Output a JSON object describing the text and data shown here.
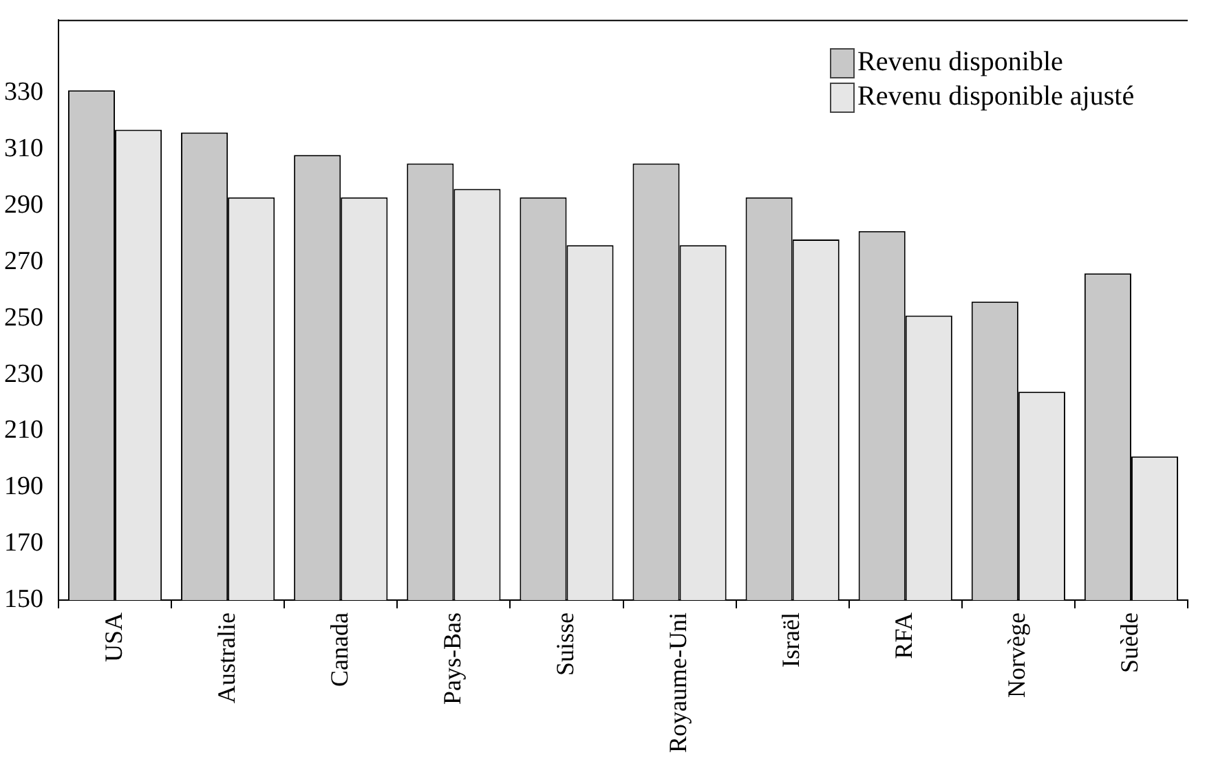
{
  "chart_data": {
    "type": "bar",
    "categories": [
      "USA",
      "Australie",
      "Canada",
      "Pays-Bas",
      "Suisse",
      "Royaume-Uni",
      "Israël",
      "RFA",
      "Norvège",
      "Suède"
    ],
    "series": [
      {
        "name": "Revenu disponible",
        "color": "#c8c8c8",
        "values": [
          331,
          316,
          308,
          305,
          293,
          305,
          293,
          281,
          256,
          266
        ]
      },
      {
        "name": "Revenu disponible ajusté",
        "color": "#e6e6e6",
        "values": [
          317,
          293,
          293,
          296,
          276,
          276,
          278,
          251,
          224,
          201
        ]
      }
    ],
    "ylim": [
      150,
      356
    ],
    "yticks": [
      150,
      170,
      190,
      210,
      230,
      250,
      270,
      290,
      310,
      330
    ],
    "grid": false,
    "legend": "top right"
  }
}
